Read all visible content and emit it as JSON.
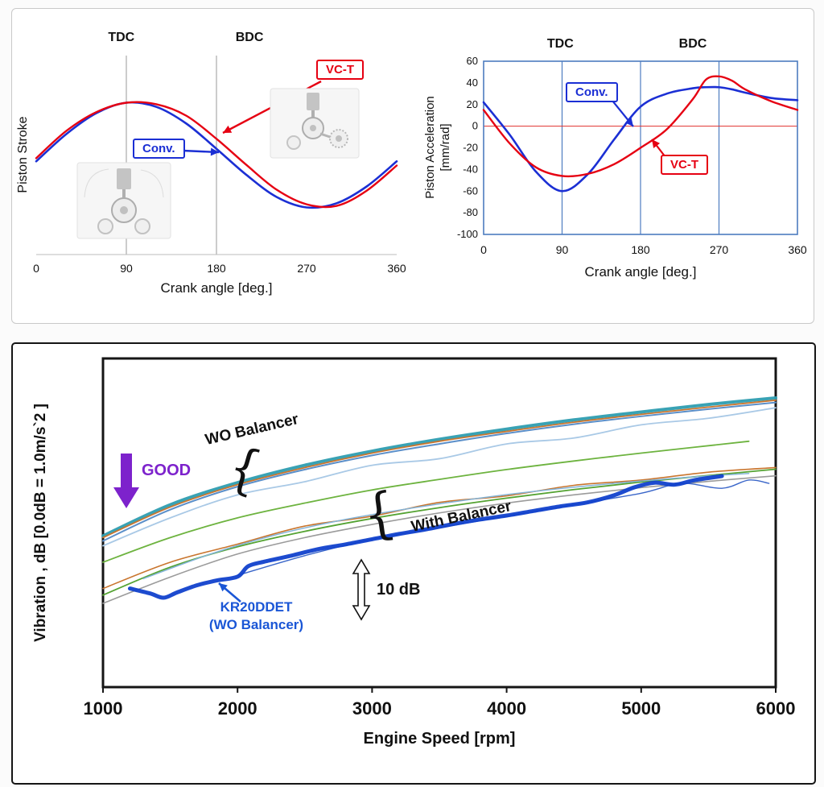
{
  "colors": {
    "vct_red": "#e60012",
    "conv_blue": "#1b2fd4",
    "accel_frame_blue": "#4d7cc0",
    "zero_line_red": "#e0312e",
    "good_purple": "#7d22cc",
    "kr_blue": "#1a56d6",
    "wo_teal": "#2e9db0",
    "kr_thick_blue": "#1141cc"
  },
  "annotations": {
    "stroke_vct": "VC-T",
    "stroke_conv": "Conv.",
    "accel_conv": "Conv.",
    "accel_vct": "VC-T",
    "good": "GOOD",
    "wo_balancer": "WO Balancer",
    "with_balancer": "With Balancer",
    "kr_line1": "KR20DDET",
    "kr_line2": "(WO Balancer)",
    "db_scale": "10 dB",
    "brace": "{"
  },
  "chart_data": [
    {
      "id": "stroke",
      "type": "line",
      "title": "",
      "xlabel": "Crank angle [deg.]",
      "ylabel": "Piston Stroke",
      "xlim": [
        0,
        360
      ],
      "ylim": [
        -0.45,
        1.45
      ],
      "xticks": [
        0,
        90,
        180,
        270,
        360
      ],
      "vlines": [
        90,
        180
      ],
      "top_labels": [
        {
          "text": "TDC",
          "deg": 85
        },
        {
          "text": "BDC",
          "deg": 213
        }
      ],
      "x": [
        0,
        30,
        60,
        90,
        120,
        150,
        180,
        210,
        240,
        270,
        300,
        330,
        360
      ],
      "series": [
        {
          "name": "Conv.",
          "color": "#1b2fd4",
          "width": 2.6,
          "y": [
            0.44,
            0.7,
            0.9,
            1.0,
            0.96,
            0.8,
            0.56,
            0.31,
            0.1,
            0.0,
            0.04,
            0.2,
            0.44
          ]
        },
        {
          "name": "VC-T",
          "color": "#e60012",
          "width": 2.4,
          "y": [
            0.47,
            0.73,
            0.91,
            1.0,
            0.985,
            0.875,
            0.655,
            0.405,
            0.17,
            0.03,
            0.015,
            0.16,
            0.4
          ]
        }
      ]
    },
    {
      "id": "accel",
      "type": "line",
      "title": "",
      "xlabel": "Crank angle [deg.]",
      "ylabel": "Piston Acceleration",
      "ylabel_unit": "[mm/rad]",
      "xlim": [
        0,
        360
      ],
      "ylim": [
        -100,
        60
      ],
      "xticks": [
        0,
        90,
        180,
        270,
        360
      ],
      "yticks": [
        60,
        40,
        20,
        0,
        -20,
        -40,
        -60,
        -80,
        -100
      ],
      "vlines": [
        90,
        180,
        270
      ],
      "hlines": [
        {
          "v": 0,
          "color": "#e0312e",
          "width": 1.1
        }
      ],
      "top_labels": [
        {
          "text": "TDC",
          "deg": 88
        },
        {
          "text": "BDC",
          "deg": 240
        }
      ],
      "x": [
        0,
        30,
        60,
        90,
        120,
        150,
        180,
        210,
        240,
        255,
        270,
        285,
        300,
        330,
        360
      ],
      "series": [
        {
          "name": "Conv.",
          "color": "#1b2fd4",
          "width": 2.6,
          "y": [
            22,
            -8,
            -42,
            -60,
            -44,
            -12,
            18,
            30,
            35,
            36,
            36,
            34,
            31,
            26,
            24
          ]
        },
        {
          "name": "VC-T",
          "color": "#e60012",
          "width": 2.4,
          "y": [
            15,
            -16,
            -38,
            -46,
            -44,
            -35,
            -20,
            -3,
            25,
            43,
            46,
            42,
            34,
            23,
            15
          ]
        }
      ]
    },
    {
      "id": "vib",
      "type": "line",
      "title": "",
      "xlabel": "Engine Speed [rpm]",
      "ylabel": "Vibration ,  dB [0.0dB = 1.0m/s`2 ]",
      "xlim": [
        1000,
        6000
      ],
      "ylim": [
        0,
        100
      ],
      "xticks": [
        1000,
        2000,
        3000,
        4000,
        5000,
        6000
      ],
      "x": [
        1000,
        1500,
        2000,
        2500,
        3000,
        3500,
        4000,
        4500,
        5000,
        5500,
        6000
      ],
      "series": [
        {
          "name": "WO Balancer - teal",
          "color": "#2e9db0",
          "width": 4,
          "opacity": 0.95,
          "y": [
            46,
            55.5,
            62.2,
            67.5,
            71.8,
            75.4,
            78.5,
            81.3,
            83.7,
            86,
            88
          ]
        },
        {
          "name": "WO Balancer - steel blue",
          "color": "#5b8fc9",
          "width": 2,
          "y": [
            44.5,
            54,
            61,
            66.2,
            70.5,
            74,
            77.2,
            80,
            82.4,
            84.6,
            86.6
          ]
        },
        {
          "name": "WO Balancer - light blue",
          "color": "#a9c9e6",
          "width": 1.8,
          "y": [
            43,
            51.5,
            58.5,
            62.5,
            67.5,
            69.5,
            74,
            75.8,
            79.8,
            81.8,
            85
          ]
        },
        {
          "name": "WO Balancer - orange",
          "color": "#c9752e",
          "width": 1.8,
          "y": [
            45.5,
            54.8,
            61.6,
            66.8,
            71.2,
            74.8,
            77.8,
            80.6,
            83,
            85.2,
            87.3
          ]
        },
        {
          "name": "mid green",
          "color": "#6db33f",
          "width": 1.8,
          "x": [
            1000,
            1500,
            2000,
            2500,
            3000,
            3500,
            4000,
            4500,
            5000,
            5400,
            5800
          ],
          "y": [
            38,
            45.5,
            51.5,
            56,
            60,
            63.2,
            66.2,
            68.8,
            71.2,
            73,
            74.8
          ]
        },
        {
          "name": "With Balancer - green",
          "color": "#55a333",
          "width": 1.8,
          "y": [
            28,
            36.5,
            42.7,
            47.4,
            51.3,
            54.6,
            57.5,
            60.1,
            62.4,
            64.4,
            66.3
          ]
        },
        {
          "name": "With Balancer - orange",
          "color": "#c9752e",
          "width": 1.6,
          "y": [
            30,
            38,
            43.5,
            49,
            52,
            56.2,
            58.2,
            61.4,
            63,
            65.4,
            66.8
          ]
        },
        {
          "name": "With Balancer - gray",
          "color": "#9b9b9b",
          "width": 1.6,
          "y": [
            25.5,
            33.5,
            40.5,
            45.5,
            49.5,
            53,
            56,
            58.5,
            60.7,
            62.6,
            64.3
          ]
        },
        {
          "name": "With Balancer - light blue",
          "color": "#84b4d8",
          "width": 1.5,
          "x": [
            1300,
            1800,
            2300,
            2800,
            3300,
            3800,
            4300,
            4800,
            5300,
            5800
          ],
          "y": [
            33,
            40.5,
            46.5,
            51,
            54.5,
            57.5,
            60,
            62,
            63.7,
            65
          ]
        },
        {
          "name": "With Balancer - thin blue",
          "color": "#3a66c9",
          "width": 1.4,
          "x": [
            2000,
            2500,
            3000,
            3500,
            4000,
            4500,
            5000,
            5300,
            5600,
            5800,
            5950
          ],
          "y": [
            34,
            40,
            45,
            48.5,
            52,
            55.5,
            59,
            62,
            60.5,
            63,
            62
          ]
        },
        {
          "name": "KR20DDET (WO Balancer)",
          "color": "#1141cc",
          "width": 5,
          "opacity": 0.95,
          "x": [
            1200,
            1350,
            1450,
            1550,
            1700,
            1850,
            2000,
            2080,
            2200,
            2400,
            2600,
            2800,
            3000,
            3200,
            3400,
            3600,
            3800,
            4000,
            4200,
            4400,
            4600,
            4800,
            4950,
            5100,
            5250,
            5400,
            5600
          ],
          "y": [
            30,
            28.5,
            27.2,
            28.8,
            31,
            32.5,
            33.6,
            36.8,
            38.2,
            40,
            42,
            43.4,
            45,
            46.6,
            48,
            49.6,
            51,
            52.2,
            53.6,
            55,
            56.2,
            58.4,
            60.8,
            62.2,
            61.6,
            63,
            64.2
          ]
        }
      ]
    }
  ]
}
